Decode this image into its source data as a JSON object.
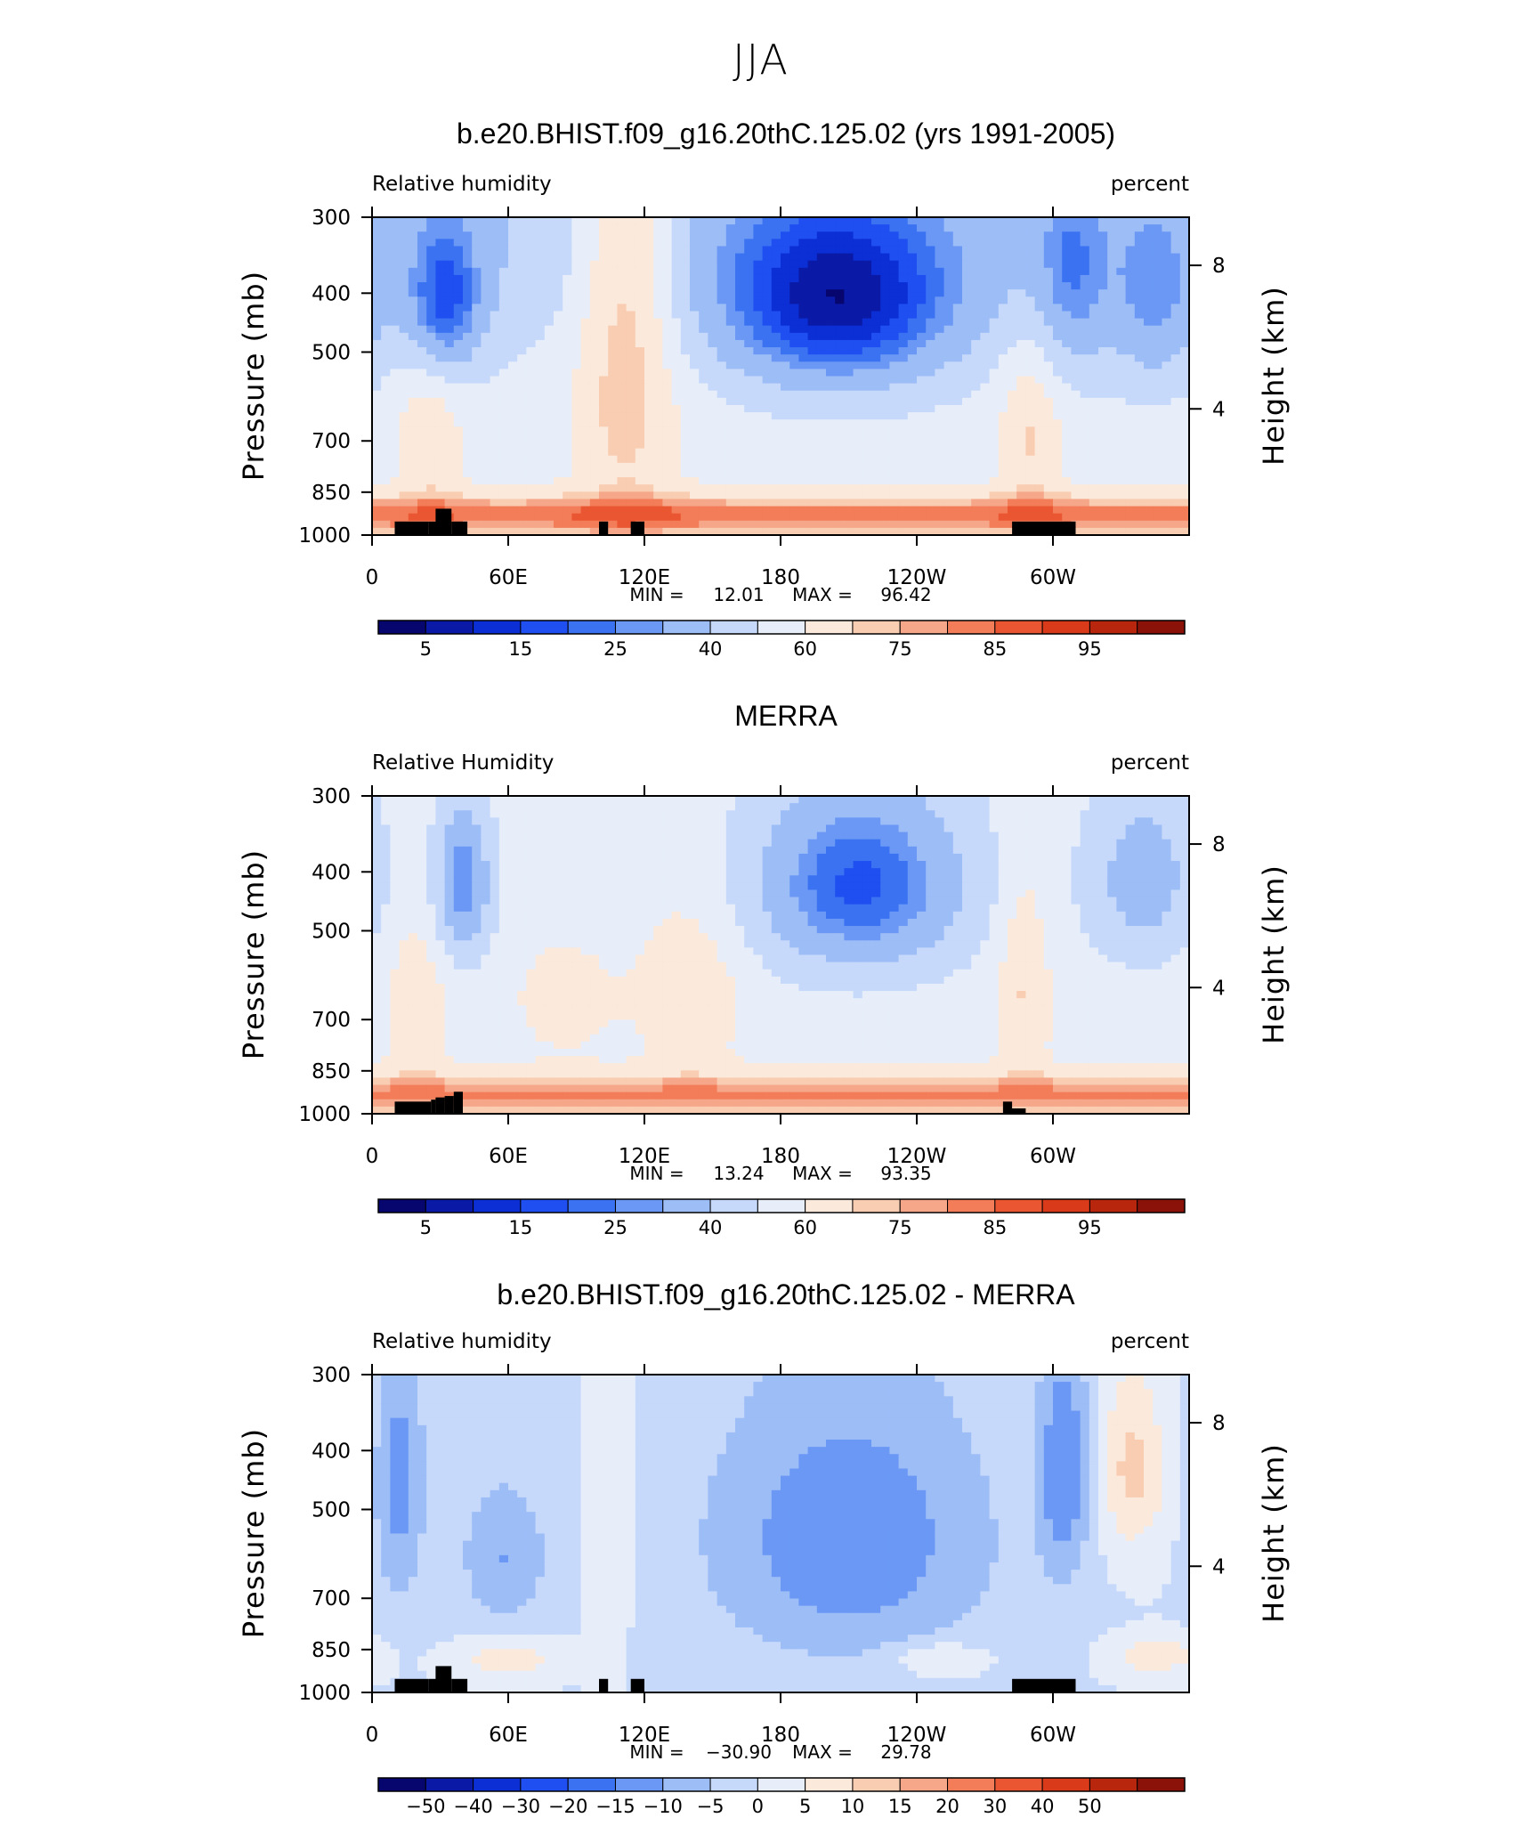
{
  "figure": {
    "title": "JJA"
  },
  "chart_data": [
    {
      "type": "heatmap",
      "title": "b.e20.BHIST.f09_g16.20thC.125.02 (yrs 1991-2005)",
      "left_label": "Relative humidity",
      "right_label": "percent",
      "ylabel": "Pressure (mb)",
      "ylabel_right": "Height (km)",
      "x_ticks": [
        "0",
        "60E",
        "120E",
        "180",
        "120W",
        "60W"
      ],
      "x_tick_values": [
        0,
        60,
        120,
        180,
        240,
        300
      ],
      "xlim": [
        0,
        360
      ],
      "y_ticks": [
        "300",
        "400",
        "500",
        "700",
        "850",
        "1000"
      ],
      "y_tick_values": [
        300,
        400,
        500,
        700,
        850,
        1000
      ],
      "ylim": [
        1000,
        300
      ],
      "y_scale": "log",
      "y2_ticks": [
        "8",
        "4"
      ],
      "y2_tick_pressures": [
        360,
        620
      ],
      "min_label": "MIN =",
      "min_value": "12.01",
      "max_label": "MAX =",
      "max_value": "96.42",
      "colorbar_labels": [
        "5",
        "15",
        "25",
        "40",
        "60",
        "75",
        "85",
        "95"
      ],
      "color_scheme": "absolute",
      "field_scale": 1,
      "topography": "model"
    },
    {
      "type": "heatmap",
      "title": "MERRA",
      "left_label": "Relative Humidity",
      "right_label": "percent",
      "ylabel": "Pressure (mb)",
      "ylabel_right": "Height (km)",
      "x_ticks": [
        "0",
        "60E",
        "120E",
        "180",
        "120W",
        "60W"
      ],
      "x_tick_values": [
        0,
        60,
        120,
        180,
        240,
        300
      ],
      "xlim": [
        0,
        360
      ],
      "y_ticks": [
        "300",
        "400",
        "500",
        "700",
        "850",
        "1000"
      ],
      "y_tick_values": [
        300,
        400,
        500,
        700,
        850,
        1000
      ],
      "ylim": [
        1000,
        300
      ],
      "y_scale": "log",
      "y2_ticks": [
        "8",
        "4"
      ],
      "y2_tick_pressures": [
        360,
        620
      ],
      "min_label": "MIN =",
      "min_value": "13.24",
      "max_label": "MAX =",
      "max_value": "93.35",
      "colorbar_labels": [
        "5",
        "15",
        "25",
        "40",
        "60",
        "75",
        "85",
        "95"
      ],
      "color_scheme": "absolute",
      "field_scale": 0.97,
      "topography": "reanalysis"
    },
    {
      "type": "heatmap",
      "title": "b.e20.BHIST.f09_g16.20thC.125.02 - MERRA",
      "left_label": "Relative humidity",
      "right_label": "percent",
      "ylabel": "Pressure (mb)",
      "ylabel_right": "Height (km)",
      "x_ticks": [
        "0",
        "60E",
        "120E",
        "180",
        "120W",
        "60W"
      ],
      "x_tick_values": [
        0,
        60,
        120,
        180,
        240,
        300
      ],
      "xlim": [
        0,
        360
      ],
      "y_ticks": [
        "300",
        "400",
        "500",
        "700",
        "850",
        "1000"
      ],
      "y_tick_values": [
        300,
        400,
        500,
        700,
        850,
        1000
      ],
      "ylim": [
        1000,
        300
      ],
      "y_scale": "log",
      "y2_ticks": [
        "8",
        "4"
      ],
      "y2_tick_pressures": [
        360,
        620
      ],
      "min_label": "MIN =",
      "min_value": "−30.90",
      "max_label": "MAX =",
      "max_value": "29.78",
      "colorbar_labels": [
        "−50",
        "−40",
        "−30",
        "−20",
        "−15",
        "−10",
        "−5",
        "0",
        "5",
        "10",
        "15",
        "20",
        "30",
        "40",
        "50"
      ],
      "color_scheme": "difference",
      "field_scale": 1,
      "topography": "model"
    }
  ],
  "colors": {
    "absolute": [
      "#06066e",
      "#0a1aa6",
      "#0b2fd4",
      "#1f4ff0",
      "#3a72f2",
      "#6b98f5",
      "#9dbdf7",
      "#c6d9fa",
      "#e7eefa",
      "#fbe9db",
      "#f9cdb2",
      "#f6a78a",
      "#f27d58",
      "#ea5631",
      "#d93a1a",
      "#b8260e",
      "#8b1208"
    ],
    "difference": [
      "#06066e",
      "#0a1aa6",
      "#0b2fd4",
      "#1f4ff0",
      "#3a72f2",
      "#6b98f5",
      "#9dbdf7",
      "#c6d9fa",
      "#e7eefa",
      "#fbe9db",
      "#f9cdb2",
      "#f6a78a",
      "#f27d58",
      "#ea5631",
      "#d93a1a",
      "#b8260e",
      "#8b1208"
    ],
    "topography": "#000000"
  }
}
